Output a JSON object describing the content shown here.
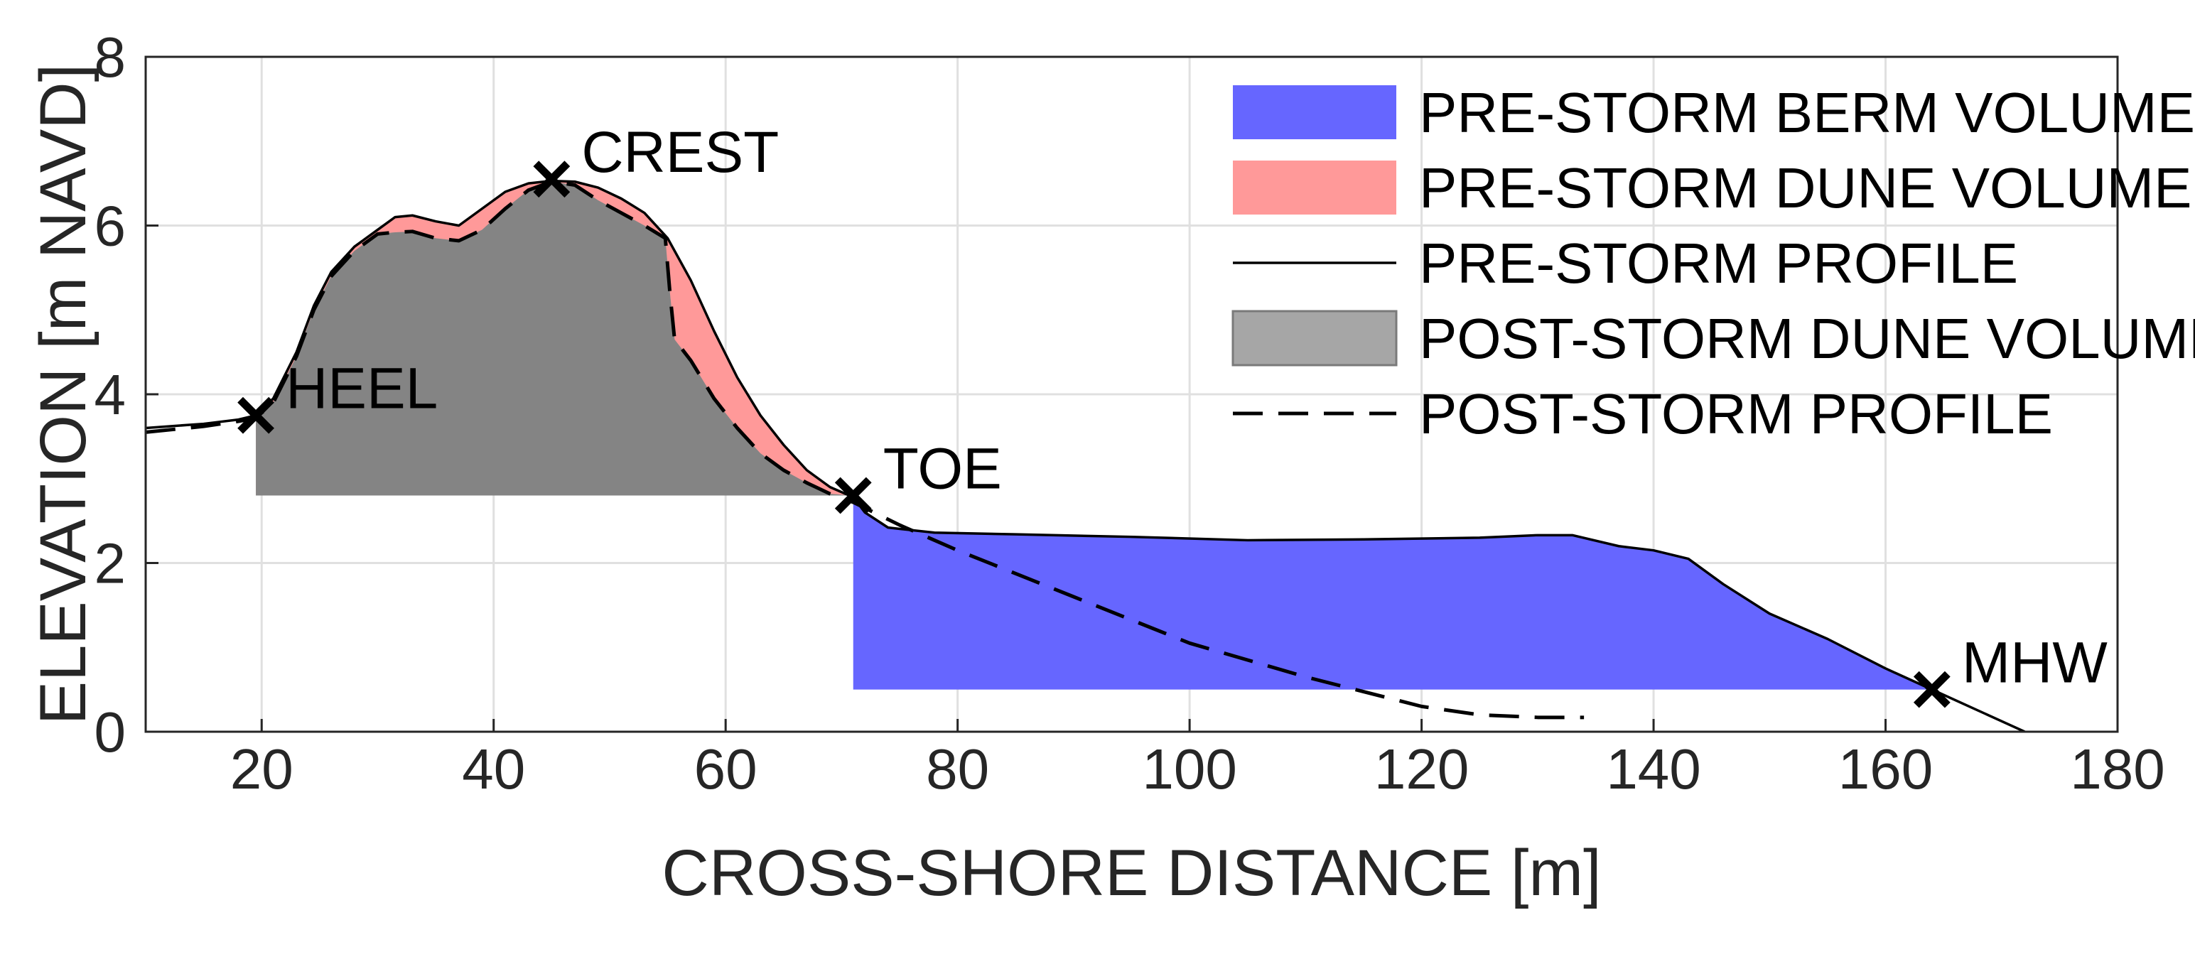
{
  "chart_data": {
    "type": "area",
    "title": "",
    "xlabel": "CROSS-SHORE DISTANCE [m]",
    "ylabel": "ELEVATION [m NAVD]",
    "xlim": [
      10,
      180
    ],
    "ylim": [
      0,
      8
    ],
    "xticks": [
      20,
      40,
      60,
      80,
      100,
      120,
      140,
      160,
      180
    ],
    "yticks": [
      0,
      2,
      4,
      6,
      8
    ],
    "grid": true,
    "legend_position": "top-right",
    "legend": [
      {
        "label": "PRE-STORM BERM VOLUME",
        "kind": "patch",
        "color": "#6666ff"
      },
      {
        "label": "PRE-STORM DUNE VOLUME",
        "kind": "patch",
        "color": "#ff9999"
      },
      {
        "label": "PRE-STORM PROFILE",
        "kind": "solid-line",
        "color": "#000000"
      },
      {
        "label": "POST-STORM DUNE VOLUME",
        "kind": "patch",
        "color": "#a6a6a6"
      },
      {
        "label": "POST-STORM PROFILE",
        "kind": "dashed-line",
        "color": "#000000"
      }
    ],
    "series": [
      {
        "name": "PRE-STORM PROFILE",
        "style": "solid",
        "x": [
          10,
          15,
          18,
          19.5,
          21,
          23,
          24.5,
          26,
          28,
          30,
          31.5,
          33,
          35,
          37,
          39,
          41,
          43,
          45,
          47,
          49,
          51,
          53,
          55,
          57,
          59,
          61,
          63,
          65,
          67,
          69,
          71,
          72,
          74,
          78,
          85,
          95,
          105,
          115,
          125,
          130,
          133,
          137,
          140,
          143,
          146,
          150,
          155,
          160,
          164,
          168,
          172
        ],
        "y": [
          3.6,
          3.65,
          3.7,
          3.75,
          3.95,
          4.5,
          5.05,
          5.45,
          5.75,
          5.95,
          6.1,
          6.12,
          6.05,
          6.0,
          6.2,
          6.4,
          6.5,
          6.53,
          6.52,
          6.45,
          6.32,
          6.15,
          5.85,
          5.35,
          4.75,
          4.2,
          3.75,
          3.4,
          3.1,
          2.9,
          2.78,
          2.6,
          2.42,
          2.36,
          2.34,
          2.31,
          2.27,
          2.28,
          2.3,
          2.33,
          2.33,
          2.2,
          2.15,
          2.05,
          1.75,
          1.4,
          1.1,
          0.75,
          0.5,
          0.25,
          0.0
        ]
      },
      {
        "name": "POST-STORM PROFILE",
        "style": "dashed",
        "x": [
          10,
          15,
          18,
          19.5,
          21,
          23,
          24.5,
          26,
          28,
          30,
          31.5,
          33,
          35,
          37,
          39,
          41,
          43,
          45,
          47,
          49,
          51,
          53,
          54.8,
          55.2,
          55.6,
          57,
          59,
          61,
          63,
          65,
          67,
          69,
          71,
          75,
          80,
          90,
          100,
          110,
          120,
          125,
          130,
          134
        ],
        "y": [
          3.55,
          3.62,
          3.68,
          3.72,
          3.9,
          4.45,
          5.0,
          5.4,
          5.7,
          5.9,
          5.92,
          5.93,
          5.85,
          5.82,
          5.95,
          6.2,
          6.42,
          6.52,
          6.48,
          6.3,
          6.15,
          6.0,
          5.85,
          5.2,
          4.65,
          4.4,
          3.95,
          3.6,
          3.3,
          3.1,
          2.95,
          2.82,
          2.72,
          2.45,
          2.15,
          1.6,
          1.05,
          0.65,
          0.3,
          0.2,
          0.17,
          0.17
        ]
      }
    ],
    "areas": [
      {
        "name": "PRE-STORM DUNE VOLUME",
        "x_range": [
          19.5,
          71
        ],
        "base": 2.8,
        "top": "PRE-STORM PROFILE",
        "color": "#ff9999"
      },
      {
        "name": "POST-STORM DUNE VOLUME",
        "x_range": [
          19.5,
          71
        ],
        "base": 2.8,
        "top": "POST-STORM PROFILE",
        "color": "#a6a6a6"
      },
      {
        "name": "PRE-STORM BERM VOLUME",
        "x_range": [
          71,
          164
        ],
        "base": 0.5,
        "top": "PRE-STORM PROFILE",
        "color": "#6666ff"
      }
    ],
    "annotations": [
      {
        "label": "HEEL",
        "x": 19.5,
        "y": 3.75,
        "placement": "right-above"
      },
      {
        "label": "CREST",
        "x": 45,
        "y": 6.55,
        "placement": "right-above"
      },
      {
        "label": "TOE",
        "x": 71,
        "y": 2.8,
        "placement": "right-above"
      },
      {
        "label": "MHW",
        "x": 164,
        "y": 0.5,
        "placement": "right-above"
      }
    ]
  }
}
